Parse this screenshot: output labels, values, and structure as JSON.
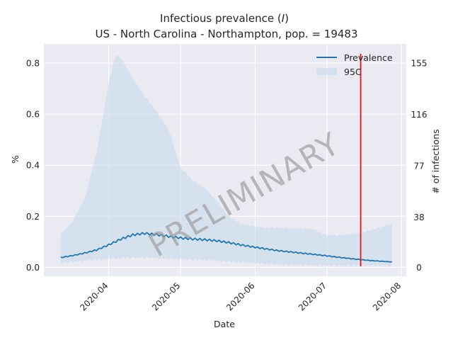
{
  "chart_data": {
    "type": "line",
    "title_line1": "Infectious prevalence (",
    "title_italic": "I",
    "title_line1_end": ")",
    "title_line2": "US - North Carolina - Northampton, pop. = 19483",
    "xlabel": "Date",
    "ylabel": "%",
    "ylabel_right": "# of infections",
    "watermark": "PRELIMINARY",
    "legend_position": "top-right",
    "grid": true,
    "x_domain": [
      "2020-03-05",
      "2020-08-03"
    ],
    "ylim": [
      -0.035,
      0.875
    ],
    "x_ticks": [
      "2020-04-01",
      "2020-05-01",
      "2020-06-01",
      "2020-07-01",
      "2020-08-01"
    ],
    "x_tick_labels": [
      "2020-04",
      "2020-05",
      "2020-06",
      "2020-07",
      "2020-08"
    ],
    "y_ticks": [
      0.0,
      0.2,
      0.4,
      0.6,
      0.8
    ],
    "y_tick_labels": [
      "0.0",
      "0.2",
      "0.4",
      "0.6",
      "0.8"
    ],
    "y_right_ticks": [
      0,
      38,
      77,
      116,
      155
    ],
    "y_right_tick_labels": [
      "0",
      "38",
      "77",
      "116",
      "155"
    ],
    "marker_date": "2020-07-15",
    "series": [
      {
        "name": "Prevalence",
        "type": "line",
        "x": [
          "2020-03-12",
          "2020-03-17",
          "2020-03-22",
          "2020-03-27",
          "2020-04-01",
          "2020-04-06",
          "2020-04-11",
          "2020-04-16",
          "2020-04-21",
          "2020-04-26",
          "2020-05-01",
          "2020-05-06",
          "2020-05-11",
          "2020-05-16",
          "2020-05-21",
          "2020-05-26",
          "2020-05-31",
          "2020-06-05",
          "2020-06-10",
          "2020-06-15",
          "2020-06-20",
          "2020-06-25",
          "2020-06-30",
          "2020-07-05",
          "2020-07-10",
          "2020-07-15",
          "2020-07-20",
          "2020-07-25",
          "2020-07-28"
        ],
        "values": [
          0.038,
          0.046,
          0.056,
          0.068,
          0.088,
          0.11,
          0.127,
          0.133,
          0.128,
          0.121,
          0.115,
          0.111,
          0.108,
          0.104,
          0.097,
          0.088,
          0.08,
          0.073,
          0.066,
          0.061,
          0.056,
          0.051,
          0.046,
          0.04,
          0.035,
          0.03,
          0.026,
          0.023,
          0.021
        ]
      },
      {
        "name": "95C",
        "type": "band",
        "x": [
          "2020-03-12",
          "2020-03-17",
          "2020-03-22",
          "2020-03-27",
          "2020-04-01",
          "2020-04-04",
          "2020-04-06",
          "2020-04-11",
          "2020-04-16",
          "2020-04-21",
          "2020-04-26",
          "2020-05-01",
          "2020-05-06",
          "2020-05-11",
          "2020-05-16",
          "2020-05-21",
          "2020-05-26",
          "2020-05-31",
          "2020-06-05",
          "2020-06-10",
          "2020-06-15",
          "2020-06-20",
          "2020-06-25",
          "2020-06-30",
          "2020-07-05",
          "2020-07-10",
          "2020-07-15",
          "2020-07-20",
          "2020-07-25",
          "2020-07-28"
        ],
        "lower": [
          0.018,
          0.022,
          0.026,
          0.03,
          0.033,
          0.035,
          0.036,
          0.038,
          0.038,
          0.036,
          0.034,
          0.032,
          0.03,
          0.028,
          0.026,
          0.023,
          0.02,
          0.017,
          0.014,
          0.012,
          0.01,
          0.009,
          0.008,
          0.007,
          0.006,
          0.006,
          0.006,
          0.006,
          0.006,
          0.006
        ],
        "upper": [
          0.13,
          0.18,
          0.27,
          0.45,
          0.72,
          0.83,
          0.82,
          0.74,
          0.67,
          0.61,
          0.54,
          0.39,
          0.34,
          0.31,
          0.26,
          0.2,
          0.17,
          0.162,
          0.155,
          0.155,
          0.153,
          0.152,
          0.15,
          0.128,
          0.125,
          0.128,
          0.135,
          0.148,
          0.162,
          0.17
        ]
      }
    ]
  }
}
